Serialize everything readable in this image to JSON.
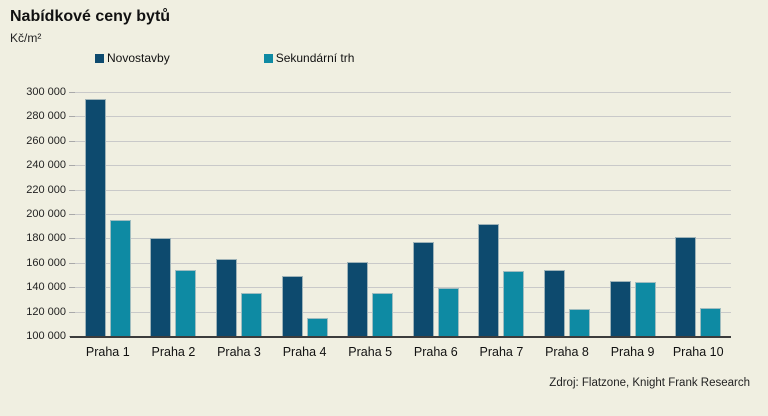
{
  "title": "Nabídkové ceny bytů",
  "unit_label": "Kč/m²",
  "source": "Zdroj: Flatzone, Knight Frank Research",
  "colors": {
    "background": "#f0efe1",
    "novostavby": "#0d4a6e",
    "sekundarni_trh": "#0e8aa3",
    "gridline": "#c9c9c9",
    "axis": "#3c3c3c"
  },
  "chart_data": {
    "type": "bar",
    "title": "Nabídkové ceny bytů",
    "ylabel": "Kč/m²",
    "xlabel": "",
    "categories": [
      "Praha 1",
      "Praha 2",
      "Praha 3",
      "Praha 4",
      "Praha 5",
      "Praha 6",
      "Praha 7",
      "Praha 8",
      "Praha 9",
      "Praha 10"
    ],
    "series": [
      {
        "name": "Novostavby",
        "color": "#0d4a6e",
        "values": [
          294000,
          180000,
          163000,
          149000,
          161000,
          177000,
          192000,
          154000,
          145000,
          181000
        ]
      },
      {
        "name": "Sekundární trh",
        "color": "#0e8aa3",
        "values": [
          195000,
          154000,
          135000,
          115000,
          135000,
          139000,
          153000,
          122000,
          144000,
          123000
        ]
      }
    ],
    "ylim": [
      100000,
      300000
    ],
    "ytick_step": 20000,
    "ytick_labels": [
      "300 000",
      "280 000",
      "260 000",
      "240 000",
      "220 000",
      "200 000",
      "180 000",
      "160 000",
      "140 000",
      "120 000",
      "100 000"
    ],
    "grid": true,
    "legend_position": "top-left"
  }
}
